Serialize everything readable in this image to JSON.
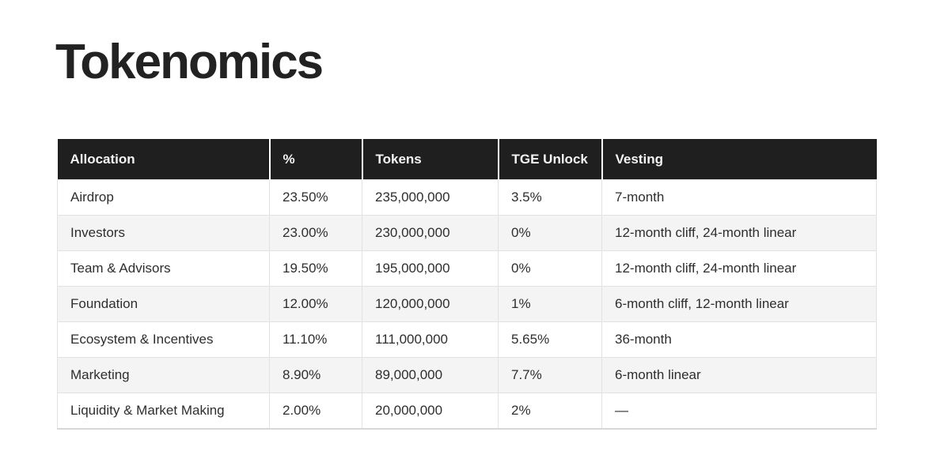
{
  "page": {
    "title": "Tokenomics"
  },
  "colors": {
    "header_bg": "#1f1f1f",
    "header_text": "#f4f4f4",
    "stripe_bg": "#f4f4f4",
    "border": "#e2e2e2",
    "body_text": "#2e2e2e",
    "title_text": "#222222"
  },
  "table": {
    "columns": [
      "Allocation",
      "%",
      "Tokens",
      "TGE Unlock",
      "Vesting"
    ],
    "rows": [
      {
        "cells": [
          "Airdrop",
          "23.50%",
          "235,000,000",
          "3.5%",
          "7-month"
        ]
      },
      {
        "cells": [
          "Investors",
          "23.00%",
          "230,000,000",
          "0%",
          "12-month cliff, 24-month linear"
        ]
      },
      {
        "cells": [
          "Team & Advisors",
          "19.50%",
          "195,000,000",
          "0%",
          "12-month cliff, 24-month linear"
        ]
      },
      {
        "cells": [
          "Foundation",
          "12.00%",
          "120,000,000",
          "1%",
          "6-month cliff, 12-month linear"
        ]
      },
      {
        "cells": [
          "Ecosystem & Incentives",
          "11.10%",
          "111,000,000",
          "5.65%",
          "36-month"
        ]
      },
      {
        "cells": [
          "Marketing",
          "8.90%",
          "89,000,000",
          "7.7%",
          "6-month linear"
        ]
      },
      {
        "cells": [
          "Liquidity & Market Making",
          "2.00%",
          "20,000,000",
          "2%",
          "—"
        ]
      }
    ]
  }
}
